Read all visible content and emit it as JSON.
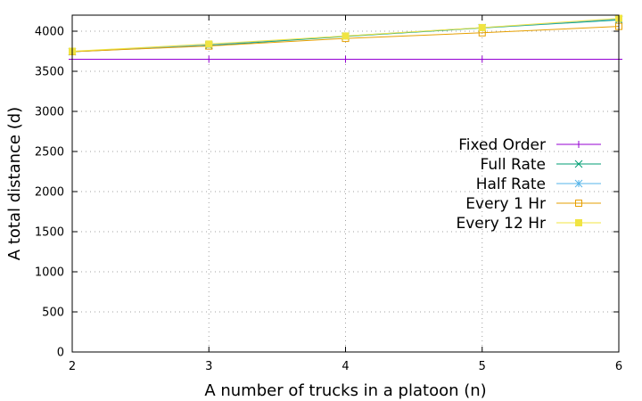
{
  "chart_data": {
    "type": "line",
    "xlabel": "A number of trucks in a platoon (n)",
    "ylabel": "A total distance (d)",
    "xlim": [
      2,
      6
    ],
    "ylim": [
      0,
      4200
    ],
    "xticks": [
      2,
      3,
      4,
      5,
      6
    ],
    "yticks": [
      0,
      500,
      1000,
      1500,
      2000,
      2500,
      3000,
      3500,
      4000
    ],
    "grid": true,
    "legend_position": "right",
    "x": [
      2,
      3,
      4,
      5,
      6
    ],
    "series": [
      {
        "name": "Fixed Order",
        "color": "#9400d3",
        "marker": "plus",
        "values": [
          3650,
          3650,
          3650,
          3650,
          3650
        ]
      },
      {
        "name": "Full Rate",
        "color": "#009e73",
        "marker": "cross",
        "values": [
          3745,
          3820,
          3935,
          4040,
          4140
        ]
      },
      {
        "name": "Half Rate",
        "color": "#56b4e9",
        "marker": "star",
        "values": [
          3745,
          3830,
          3940,
          4045,
          4150
        ]
      },
      {
        "name": "Every 1 Hr",
        "color": "#e69f00",
        "marker": "open-square",
        "values": [
          3745,
          3815,
          3910,
          3980,
          4060
        ]
      },
      {
        "name": "Every 12 Hr",
        "color": "#f0e442",
        "marker": "filled-square",
        "values": [
          3750,
          3840,
          3940,
          4045,
          4160
        ]
      }
    ]
  }
}
